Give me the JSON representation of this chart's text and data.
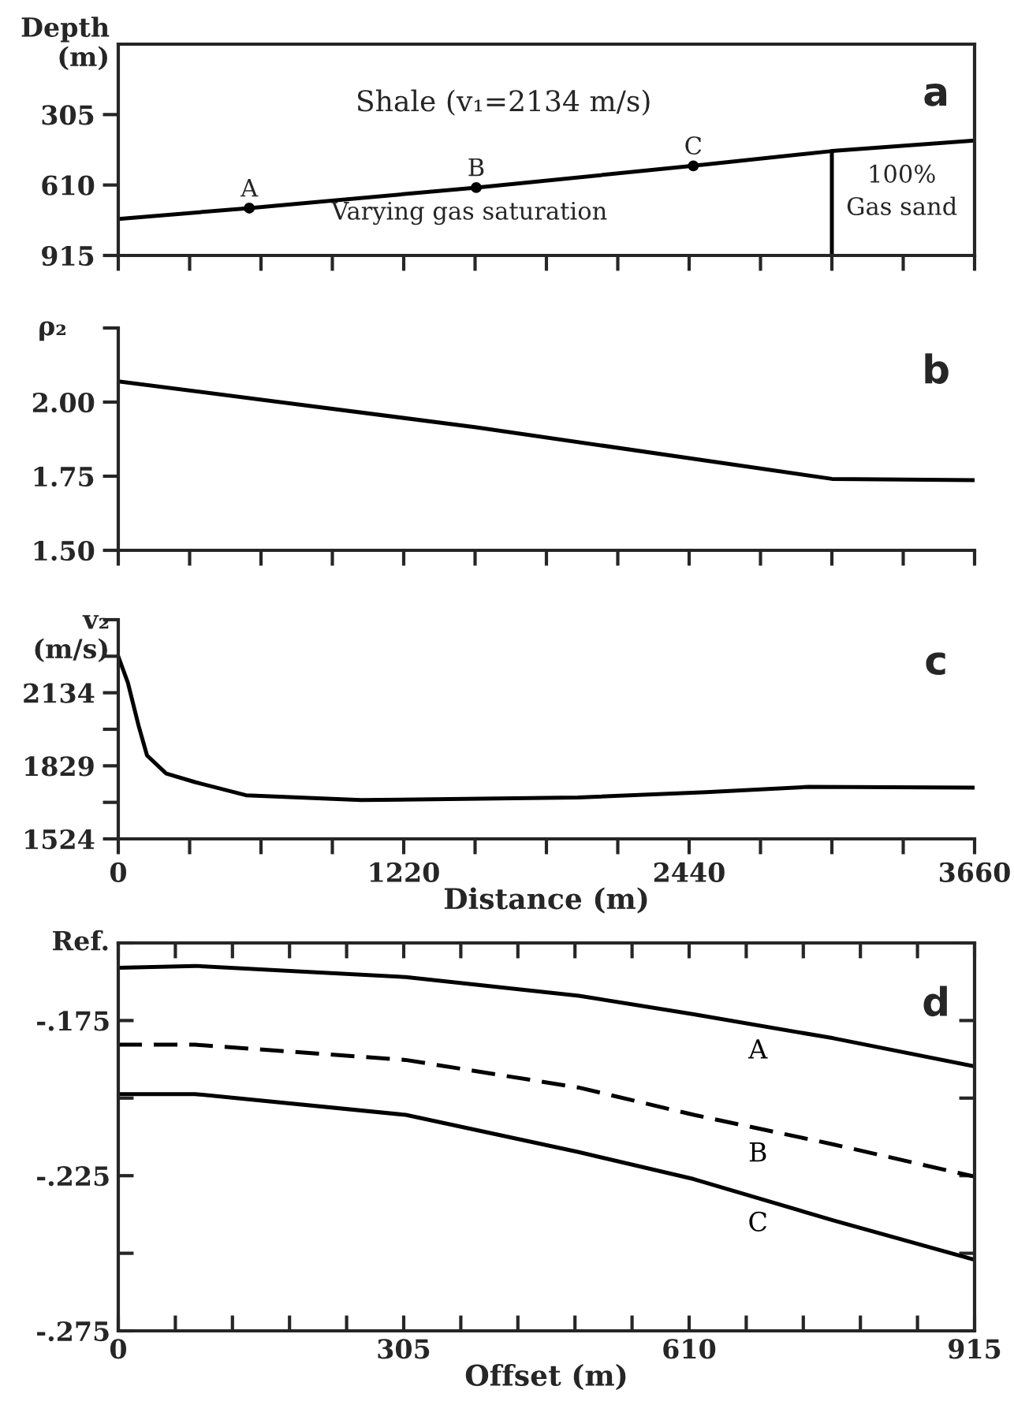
{
  "chart_data": [
    {
      "type": "line",
      "ylabel": "Depth\n(m)",
      "xlim": [
        0,
        3660
      ],
      "ylim": [
        915,
        0
      ],
      "xticks": [
        {
          "value": 0,
          "label": null
        },
        {
          "value": 305,
          "label": null
        },
        {
          "value": 610,
          "label": null
        },
        {
          "value": 915,
          "label": null
        },
        {
          "value": 1220,
          "label": null
        },
        {
          "value": 1525,
          "label": null
        },
        {
          "value": 1830,
          "label": null
        },
        {
          "value": 2135,
          "label": null
        },
        {
          "value": 2440,
          "label": null
        },
        {
          "value": 2745,
          "label": null
        },
        {
          "value": 3050,
          "label": null
        },
        {
          "value": 3355,
          "label": null
        },
        {
          "value": 3660,
          "label": null
        }
      ],
      "yticks": [
        305,
        610,
        915
      ],
      "tick_labels": "y",
      "legend": false,
      "series": [
        {
          "color": "#000000",
          "x": [
            0,
            560,
            1530,
            2458,
            3050,
            3660
          ],
          "values": [
            757,
            710,
            621,
            527,
            463,
            417
          ]
        },
        {
          "color": "#000000",
          "x": [
            3050,
            3050
          ],
          "values": [
            463,
            915
          ]
        },
        {
          "type": "scatter",
          "color": "#000000",
          "marker": "circle",
          "x": [
            560,
            1530,
            2458
          ],
          "values": [
            710,
            621,
            527
          ]
        }
      ],
      "annotations": [
        "Shale (v₁=2134 m/s)",
        "Varying gas saturation",
        "100%\nGas sand",
        "a",
        {
          "text": "A",
          "x": 560,
          "y": 710
        },
        {
          "text": "B",
          "x": 1530,
          "y": 621
        },
        {
          "text": "C",
          "x": 2458,
          "y": 527
        }
      ]
    },
    {
      "type": "line",
      "ylabel": "ρ₂",
      "xlim": [
        0,
        3660
      ],
      "ylim": [
        1.5,
        2.25
      ],
      "xticks": [
        {
          "value": 0,
          "label": null
        },
        {
          "value": 305,
          "label": null
        },
        {
          "value": 610,
          "label": null
        },
        {
          "value": 915,
          "label": null
        },
        {
          "value": 1220,
          "label": null
        },
        {
          "value": 1525,
          "label": null
        },
        {
          "value": 1830,
          "label": null
        },
        {
          "value": 2135,
          "label": null
        },
        {
          "value": 2440,
          "label": null
        },
        {
          "value": 2745,
          "label": null
        },
        {
          "value": 3050,
          "label": null
        },
        {
          "value": 3355,
          "label": null
        },
        {
          "value": 3660,
          "label": null
        }
      ],
      "yticks": [
        {
          "value": 1.5,
          "label": "1.50"
        },
        {
          "value": 1.75,
          "label": "1.75"
        },
        {
          "value": 2.0,
          "label": "2.00"
        },
        {
          "value": 2.25,
          "label": null
        }
      ],
      "tick_labels": "y",
      "legend": false,
      "series": [
        {
          "color": "#000000",
          "x": [
            0,
            1530,
            3050,
            3660
          ],
          "values": [
            2.07,
            1.915,
            1.741,
            1.737
          ]
        }
      ],
      "annotations": [
        "b"
      ]
    },
    {
      "type": "line",
      "ylabel": "v₂\n(m/s)",
      "xlabel": "Distance (m)",
      "xlim": [
        0,
        3660
      ],
      "ylim": [
        1524,
        2439
      ],
      "xticks": [
        0,
        {
          "value": 305,
          "label": null
        },
        {
          "value": 610,
          "label": null
        },
        {
          "value": 915,
          "label": null
        },
        1220,
        {
          "value": 1525,
          "label": null
        },
        {
          "value": 1830,
          "label": null
        },
        {
          "value": 2135,
          "label": null
        },
        2440,
        {
          "value": 2745,
          "label": null
        },
        {
          "value": 3050,
          "label": null
        },
        {
          "value": 3355,
          "label": null
        },
        3660
      ],
      "yticks": [
        1524,
        {
          "value": 1676.5,
          "label": null
        },
        1829,
        {
          "value": 1981.5,
          "label": null
        },
        2134,
        {
          "value": 2286.5,
          "label": null
        },
        {
          "value": 2439,
          "label": null
        }
      ],
      "legend": false,
      "series": [
        {
          "color": "#000000",
          "x": [
            0,
            41,
            87,
            123,
            205,
            328,
            546,
            1038,
            1966,
            2513,
            2950,
            3660
          ],
          "values": [
            2286,
            2176,
            1996,
            1872,
            1797,
            1761,
            1706,
            1686,
            1697,
            1719,
            1741,
            1738
          ]
        }
      ],
      "annotations": [
        "c"
      ]
    },
    {
      "type": "line",
      "ylabel": "Ref.",
      "xlabel": "Offset (m)",
      "xlim": [
        0,
        915
      ],
      "ylim": [
        -0.275,
        -0.15
      ],
      "xticks": [
        0,
        {
          "value": 61,
          "label": null
        },
        {
          "value": 122,
          "label": null
        },
        {
          "value": 183,
          "label": null
        },
        {
          "value": 244,
          "label": null
        },
        305,
        {
          "value": 366,
          "label": null
        },
        {
          "value": 427,
          "label": null
        },
        {
          "value": 488,
          "label": null
        },
        {
          "value": 549,
          "label": null
        },
        610,
        {
          "value": 671,
          "label": null
        },
        {
          "value": 732,
          "label": null
        },
        {
          "value": 793,
          "label": null
        },
        {
          "value": 854,
          "label": null
        },
        915
      ],
      "yticks": [
        {
          "value": -0.275,
          "label": "-.275"
        },
        {
          "value": -0.25,
          "label": null
        },
        {
          "value": -0.225,
          "label": "-.225"
        },
        {
          "value": -0.2,
          "label": null
        },
        {
          "value": -0.175,
          "label": "-.175"
        },
        {
          "value": -0.15,
          "label": null
        }
      ],
      "legend": false,
      "series": [
        {
          "name": "A",
          "color": "#000000",
          "line_style": "solid",
          "x": [
            0,
            82,
            307,
            492,
            615,
            764,
            915
          ],
          "values": [
            -0.158,
            -0.1574,
            -0.161,
            -0.167,
            -0.173,
            -0.1807,
            -0.1898
          ]
        },
        {
          "name": "B",
          "color": "#000000",
          "line_style": "dashed",
          "x": [
            0,
            82,
            307,
            492,
            615,
            764,
            915
          ],
          "values": [
            -0.1828,
            -0.1828,
            -0.1877,
            -0.1966,
            -0.2054,
            -0.2149,
            -0.2253
          ]
        },
        {
          "name": "C",
          "color": "#000000",
          "line_style": "solid",
          "x": [
            0,
            82,
            307,
            492,
            615,
            764,
            915
          ],
          "values": [
            -0.1987,
            -0.1987,
            -0.2054,
            -0.2174,
            -0.2261,
            -0.2394,
            -0.2521
          ]
        }
      ],
      "annotations": [
        "d"
      ]
    }
  ]
}
